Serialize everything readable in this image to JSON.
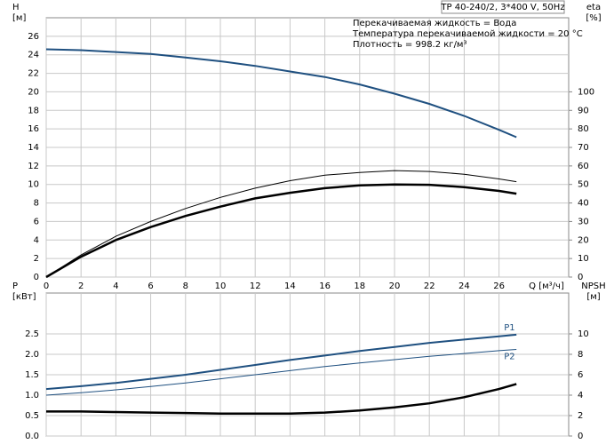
{
  "chart_data": [
    {
      "type": "line",
      "title": "TP 40-240/2, 3*400 V, 50Hz",
      "annotations": [
        "Перекачиваемая жидкость = Вода",
        "Температура перекачиваемой жидкости = 20 °C",
        "Плотность = 998.2 кг/м³"
      ],
      "y_label": "H",
      "y_unit": "[м]",
      "y2_label": "eta",
      "y2_unit": "[%]",
      "x_label": "Q [м³/ч]",
      "x": [
        0,
        2,
        4,
        6,
        8,
        10,
        12,
        14,
        16,
        18,
        20,
        22,
        24,
        26,
        27
      ],
      "xlim": [
        0,
        30
      ],
      "xticks": [
        0,
        2,
        4,
        6,
        8,
        10,
        12,
        14,
        16,
        18,
        20,
        22,
        24,
        26
      ],
      "ylim": [
        0,
        28
      ],
      "yticks": [
        0,
        2,
        4,
        6,
        8,
        10,
        12,
        14,
        16,
        18,
        20,
        22,
        24,
        26
      ],
      "y2lim": [
        0,
        140
      ],
      "y2ticks": [
        0,
        10,
        20,
        30,
        40,
        50,
        60,
        70,
        80,
        90,
        100
      ],
      "grid": true,
      "series": [
        {
          "color": "#1f5080",
          "values": [
            24.6,
            24.5,
            24.3,
            24.1,
            23.7,
            23.3,
            22.8,
            22.2,
            21.6,
            20.8,
            19.8,
            18.7,
            17.4,
            15.9,
            15.1
          ]
        },
        {
          "color": "#000000",
          "axis": "y2",
          "values": [
            0,
            12,
            22,
            30,
            37,
            43,
            48,
            52,
            55,
            56.5,
            57.5,
            57,
            55.5,
            53,
            51.5
          ]
        },
        {
          "color": "#000000",
          "axis": "y2",
          "values": [
            0,
            11,
            20,
            27,
            33,
            38,
            42.5,
            45.5,
            48,
            49.5,
            50,
            49.8,
            48.5,
            46.5,
            45
          ]
        }
      ]
    },
    {
      "type": "line",
      "y_label": "P",
      "y_unit": "[кВт]",
      "y2_label": "NPSH",
      "y2_unit": "[м]",
      "x": [
        0,
        2,
        4,
        6,
        8,
        10,
        12,
        14,
        16,
        18,
        20,
        22,
        24,
        26,
        27
      ],
      "xlim": [
        0,
        30
      ],
      "xticks": [
        0,
        2,
        4,
        6,
        8,
        10,
        12,
        14,
        16,
        18,
        20,
        22,
        24,
        26
      ],
      "ylim": [
        0,
        3.5
      ],
      "yticks": [
        {
          "value": 0,
          "label": "0.0"
        },
        0.5,
        {
          "value": 1,
          "label": "1.0"
        },
        1.5,
        {
          "value": 2,
          "label": "2.0"
        },
        2.5
      ],
      "y2lim": [
        0,
        14
      ],
      "y2ticks": [
        0,
        2,
        4,
        6,
        8,
        10
      ],
      "grid": true,
      "series": [
        {
          "name": "P1",
          "color": "#1f5080",
          "values": [
            1.15,
            1.22,
            1.3,
            1.4,
            1.5,
            1.62,
            1.74,
            1.86,
            1.97,
            2.08,
            2.18,
            2.28,
            2.36,
            2.44,
            2.48
          ]
        },
        {
          "name": "P2",
          "color": "#1f5080",
          "values": [
            1.0,
            1.06,
            1.13,
            1.21,
            1.3,
            1.4,
            1.5,
            1.6,
            1.7,
            1.79,
            1.87,
            1.95,
            2.02,
            2.09,
            2.12
          ]
        },
        {
          "color": "#000000",
          "axis": "y2",
          "values": [
            2.4,
            2.4,
            2.35,
            2.3,
            2.25,
            2.2,
            2.2,
            2.2,
            2.3,
            2.5,
            2.8,
            3.2,
            3.8,
            4.6,
            5.1
          ]
        }
      ]
    }
  ]
}
